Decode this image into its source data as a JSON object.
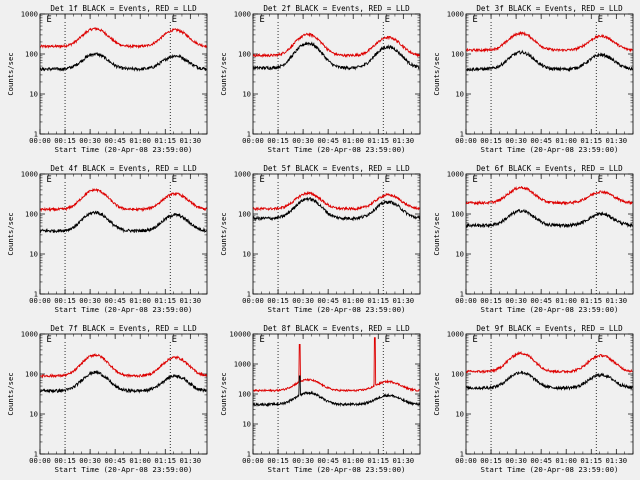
{
  "figure": {
    "background": "#f0f0f0",
    "event_color": "#000000",
    "lld_color": "#dd0000"
  },
  "chart_data": [
    {
      "type": "line",
      "title": "Det 1f BLACK = Events, RED = LLD",
      "xlabel": "Start Time (20-Apr-08 23:59:00)",
      "ylabel": "Counts/sec",
      "yscale": "log",
      "ylim": [
        1,
        1000
      ],
      "xlim_minutes": [
        0,
        100
      ],
      "xticks": [
        "00:00",
        "00:15",
        "00:30",
        "00:45",
        "01:00",
        "01:15",
        "01:30"
      ],
      "yticks": [
        "1",
        "10",
        "100",
        "1000"
      ],
      "markers": [
        {
          "label": "E",
          "minute": 5
        },
        {
          "label": "E",
          "minute": 80
        }
      ],
      "dotted_lines_minutes": [
        15,
        78
      ],
      "series": [
        {
          "color": "#dd0000",
          "base": 155,
          "peaks": [
            {
              "t": 33,
              "v": 430
            },
            {
              "t": 81,
              "v": 400
            }
          ]
        },
        {
          "color": "#000000",
          "base": 42,
          "peaks": [
            {
              "t": 33,
              "v": 100
            },
            {
              "t": 81,
              "v": 90
            }
          ]
        }
      ]
    },
    {
      "type": "line",
      "title": "Det 2f BLACK = Events, RED = LLD",
      "xlabel": "Start Time (20-Apr-08 23:59:00)",
      "ylabel": "Counts/sec",
      "yscale": "log",
      "ylim": [
        1,
        1000
      ],
      "xlim_minutes": [
        0,
        100
      ],
      "xticks": [
        "00:00",
        "00:15",
        "00:30",
        "00:45",
        "01:00",
        "01:15",
        "01:30"
      ],
      "yticks": [
        "1",
        "10",
        "100",
        "1000"
      ],
      "markers": [
        {
          "label": "E",
          "minute": 5
        },
        {
          "label": "E",
          "minute": 80
        }
      ],
      "dotted_lines_minutes": [
        15,
        78
      ],
      "series": [
        {
          "color": "#dd0000",
          "base": 92,
          "peaks": [
            {
              "t": 33,
              "v": 310
            },
            {
              "t": 81,
              "v": 260
            }
          ]
        },
        {
          "color": "#000000",
          "base": 45,
          "peaks": [
            {
              "t": 33,
              "v": 185
            },
            {
              "t": 81,
              "v": 150
            }
          ]
        }
      ]
    },
    {
      "type": "line",
      "title": "Det 3f BLACK = Events, RED = LLD",
      "xlabel": "Start Time (20-Apr-08 23:59:00)",
      "ylabel": "Counts/sec",
      "yscale": "log",
      "ylim": [
        1,
        1000
      ],
      "xlim_minutes": [
        0,
        100
      ],
      "xticks": [
        "00:00",
        "00:15",
        "00:30",
        "00:45",
        "01:00",
        "01:15",
        "01:30"
      ],
      "yticks": [
        "1",
        "10",
        "100",
        "1000"
      ],
      "markers": [
        {
          "label": "E",
          "minute": 5
        },
        {
          "label": "E",
          "minute": 80
        }
      ],
      "dotted_lines_minutes": [
        15,
        78
      ],
      "series": [
        {
          "color": "#dd0000",
          "base": 125,
          "peaks": [
            {
              "t": 33,
              "v": 330
            },
            {
              "t": 81,
              "v": 280
            }
          ]
        },
        {
          "color": "#000000",
          "base": 42,
          "peaks": [
            {
              "t": 33,
              "v": 110
            },
            {
              "t": 81,
              "v": 95
            }
          ]
        }
      ]
    },
    {
      "type": "line",
      "title": "Det 4f BLACK = Events, RED = LLD",
      "xlabel": "Start Time (20-Apr-08 23:59:00)",
      "ylabel": "Counts/sec",
      "yscale": "log",
      "ylim": [
        1,
        1000
      ],
      "xlim_minutes": [
        0,
        100
      ],
      "xticks": [
        "00:00",
        "00:15",
        "00:30",
        "00:45",
        "01:00",
        "01:15",
        "01:30"
      ],
      "yticks": [
        "1",
        "10",
        "100",
        "1000"
      ],
      "markers": [
        {
          "label": "E",
          "minute": 5
        },
        {
          "label": "E",
          "minute": 80
        }
      ],
      "dotted_lines_minutes": [
        15,
        78
      ],
      "series": [
        {
          "color": "#dd0000",
          "base": 130,
          "peaks": [
            {
              "t": 33,
              "v": 400
            },
            {
              "t": 81,
              "v": 320
            }
          ]
        },
        {
          "color": "#000000",
          "base": 38,
          "peaks": [
            {
              "t": 33,
              "v": 110
            },
            {
              "t": 81,
              "v": 95
            }
          ]
        }
      ]
    },
    {
      "type": "line",
      "title": "Det 5f BLACK = Events, RED = LLD",
      "xlabel": "Start Time (20-Apr-08 23:59:00)",
      "ylabel": "Counts/sec",
      "yscale": "log",
      "ylim": [
        1,
        1000
      ],
      "xlim_minutes": [
        0,
        100
      ],
      "xticks": [
        "00:00",
        "00:15",
        "00:30",
        "00:45",
        "01:00",
        "01:15",
        "01:30"
      ],
      "yticks": [
        "1",
        "10",
        "100",
        "1000"
      ],
      "markers": [
        {
          "label": "E",
          "minute": 5
        },
        {
          "label": "E",
          "minute": 80
        }
      ],
      "dotted_lines_minutes": [
        15,
        78
      ],
      "series": [
        {
          "color": "#dd0000",
          "base": 135,
          "peaks": [
            {
              "t": 33,
              "v": 330
            },
            {
              "t": 81,
              "v": 300
            }
          ]
        },
        {
          "color": "#000000",
          "base": 78,
          "peaks": [
            {
              "t": 33,
              "v": 240
            },
            {
              "t": 81,
              "v": 200
            }
          ]
        }
      ]
    },
    {
      "type": "line",
      "title": "Det 6f BLACK = Events, RED = LLD",
      "xlabel": "Start Time (20-Apr-08 23:59:00)",
      "ylabel": "Counts/sec",
      "yscale": "log",
      "ylim": [
        1,
        1000
      ],
      "xlim_minutes": [
        0,
        100
      ],
      "xticks": [
        "00:00",
        "00:15",
        "00:30",
        "00:45",
        "01:00",
        "01:15",
        "01:30"
      ],
      "yticks": [
        "1",
        "10",
        "100",
        "1000"
      ],
      "markers": [
        {
          "label": "E",
          "minute": 5
        },
        {
          "label": "E",
          "minute": 80
        }
      ],
      "dotted_lines_minutes": [
        15,
        78
      ],
      "series": [
        {
          "color": "#dd0000",
          "base": 190,
          "peaks": [
            {
              "t": 33,
              "v": 460
            },
            {
              "t": 81,
              "v": 360
            }
          ]
        },
        {
          "color": "#000000",
          "base": 52,
          "peaks": [
            {
              "t": 33,
              "v": 120
            },
            {
              "t": 81,
              "v": 100
            }
          ]
        }
      ]
    },
    {
      "type": "line",
      "title": "Det 7f BLACK = Events, RED = LLD",
      "xlabel": "Start Time (20-Apr-08 23:59:00)",
      "ylabel": "Counts/sec",
      "yscale": "log",
      "ylim": [
        1,
        1000
      ],
      "xlim_minutes": [
        0,
        100
      ],
      "xticks": [
        "00:00",
        "00:15",
        "00:30",
        "00:45",
        "01:00",
        "01:15",
        "01:30"
      ],
      "yticks": [
        "1",
        "10",
        "100",
        "1000"
      ],
      "markers": [
        {
          "label": "E",
          "minute": 5
        },
        {
          "label": "E",
          "minute": 80
        }
      ],
      "dotted_lines_minutes": [
        15,
        78
      ],
      "series": [
        {
          "color": "#dd0000",
          "base": 90,
          "peaks": [
            {
              "t": 33,
              "v": 300
            },
            {
              "t": 81,
              "v": 260
            }
          ]
        },
        {
          "color": "#000000",
          "base": 38,
          "peaks": [
            {
              "t": 33,
              "v": 110
            },
            {
              "t": 81,
              "v": 90
            }
          ]
        }
      ]
    },
    {
      "type": "line",
      "title": "Det 8f BLACK = Events, RED = LLD",
      "xlabel": "Start Time (20-Apr-08 23:59:00)",
      "ylabel": "Counts/sec",
      "yscale": "log",
      "ylim": [
        1,
        10000
      ],
      "xlim_minutes": [
        0,
        100
      ],
      "xticks": [
        "00:00",
        "00:15",
        "00:30",
        "00:45",
        "01:00",
        "01:15",
        "01:30"
      ],
      "yticks": [
        "1",
        "10",
        "100",
        "1000",
        "10000"
      ],
      "markers": [
        {
          "label": "E",
          "minute": 5
        },
        {
          "label": "E",
          "minute": 80
        }
      ],
      "dotted_lines_minutes": [
        15,
        78
      ],
      "series": [
        {
          "color": "#dd0000",
          "base": 130,
          "peaks": [
            {
              "t": 33,
              "v": 300
            },
            {
              "t": 81,
              "v": 260
            }
          ],
          "spikes": [
            {
              "t": 28,
              "v": 4500
            },
            {
              "t": 73,
              "v": 7500
            }
          ]
        },
        {
          "color": "#000000",
          "base": 45,
          "peaks": [
            {
              "t": 33,
              "v": 110
            },
            {
              "t": 81,
              "v": 90
            }
          ],
          "spikes": [
            {
              "t": 28,
              "v": 400
            }
          ]
        }
      ]
    },
    {
      "type": "line",
      "title": "Det 9f BLACK = Events, RED = LLD",
      "xlabel": "Start Time (20-Apr-08 23:59:00)",
      "ylabel": "Counts/sec",
      "yscale": "log",
      "ylim": [
        1,
        1000
      ],
      "xlim_minutes": [
        0,
        100
      ],
      "xticks": [
        "00:00",
        "00:15",
        "00:30",
        "00:45",
        "01:00",
        "01:15",
        "01:30"
      ],
      "yticks": [
        "1",
        "10",
        "100",
        "1000"
      ],
      "markers": [
        {
          "label": "E",
          "minute": 5
        },
        {
          "label": "E",
          "minute": 80
        }
      ],
      "dotted_lines_minutes": [
        15,
        78
      ],
      "series": [
        {
          "color": "#dd0000",
          "base": 115,
          "peaks": [
            {
              "t": 33,
              "v": 330
            },
            {
              "t": 81,
              "v": 290
            }
          ]
        },
        {
          "color": "#000000",
          "base": 45,
          "peaks": [
            {
              "t": 33,
              "v": 110
            },
            {
              "t": 81,
              "v": 95
            }
          ]
        }
      ]
    }
  ]
}
